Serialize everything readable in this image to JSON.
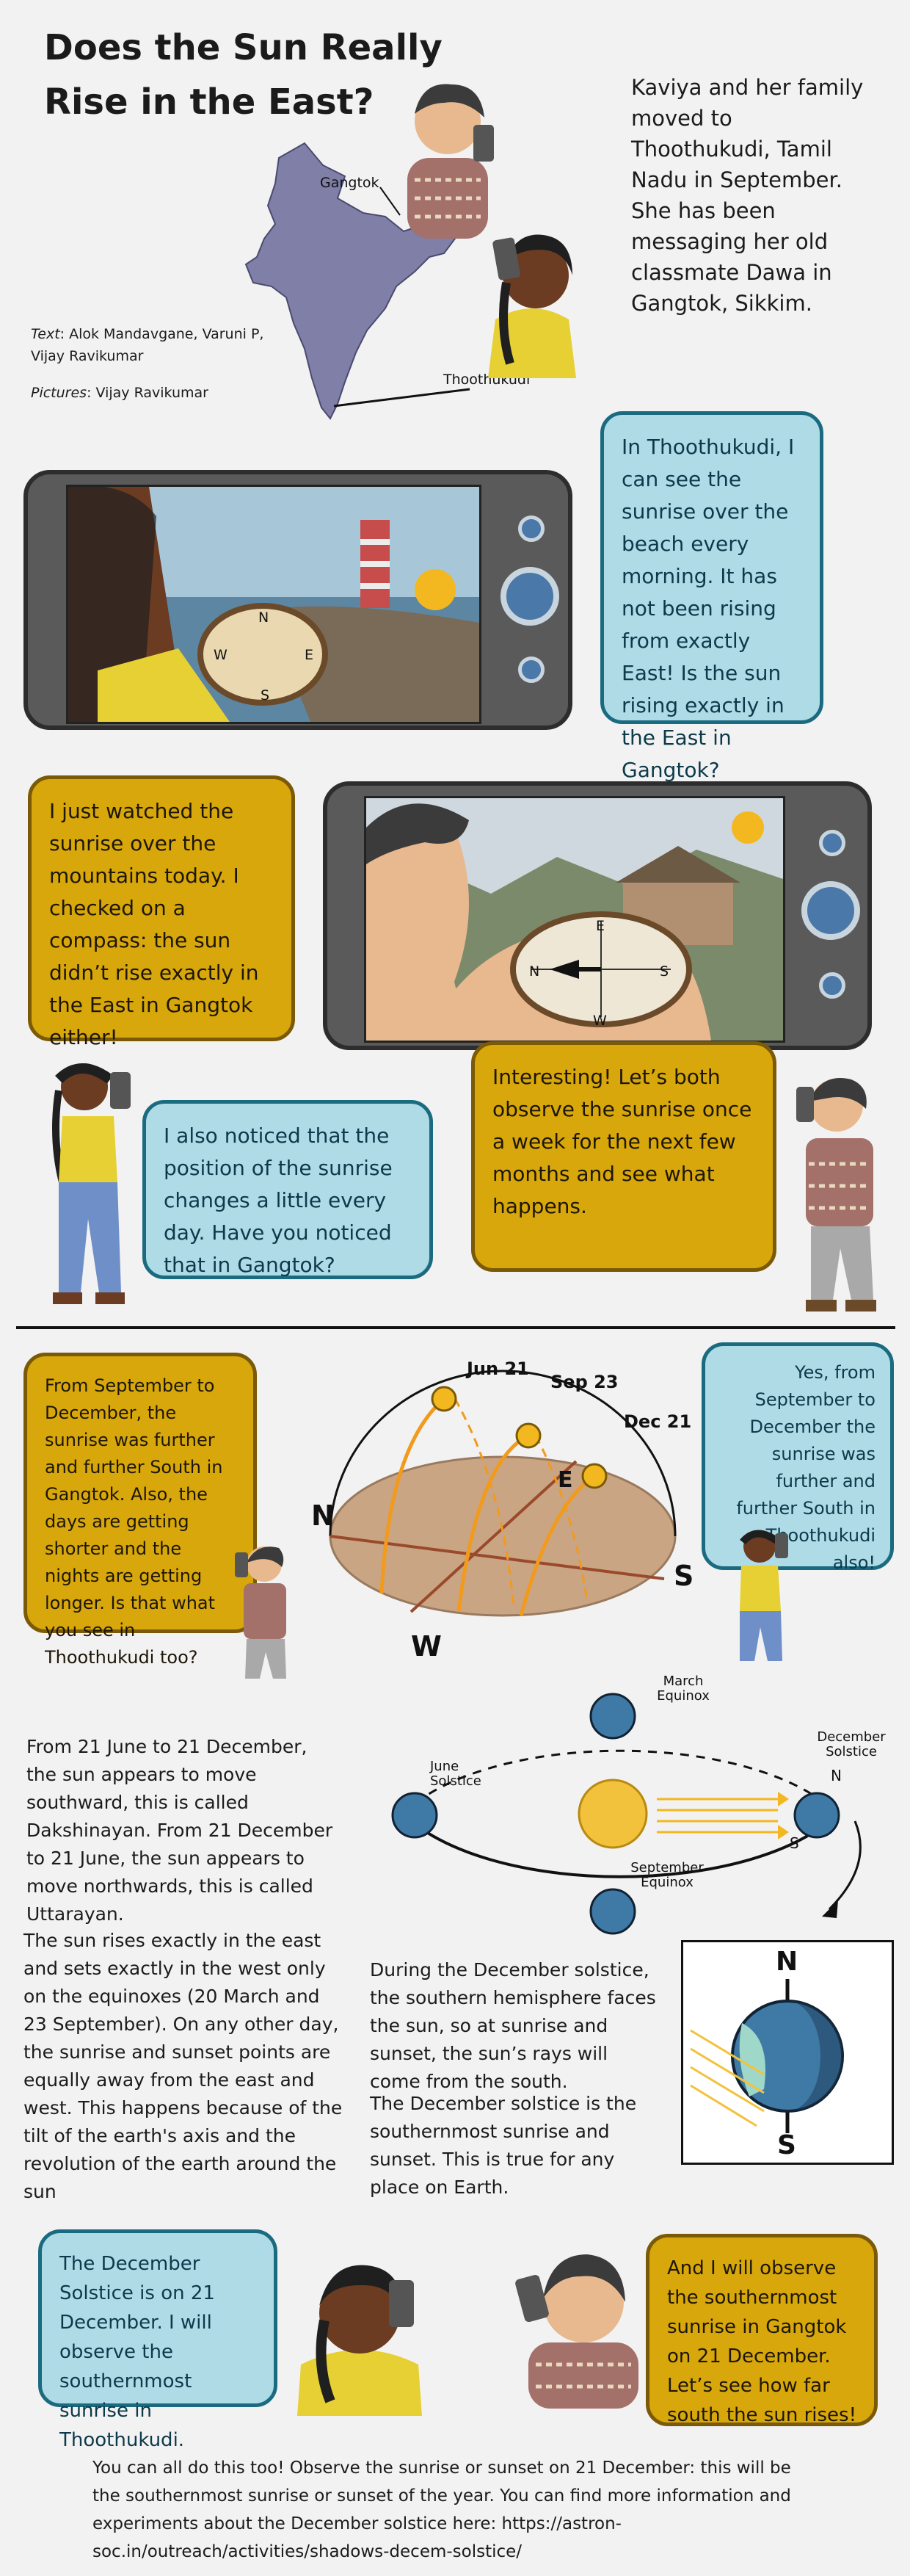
{
  "title": "Does the Sun Really Rise in the East?",
  "intro": "Kaviya and her family moved to Thoothukudi, Tamil Nadu in September. She has been messaging her old classmate Dawa in Gangtok, Sikkim.",
  "credits": {
    "text_label": "Text",
    "text_names": ": Alok Mandavgane, Varuni P, Vijay Ravikumar",
    "pictures_label": "Pictures",
    "pictures_names": ": Vijay Ravikumar"
  },
  "map": {
    "city_north": "Gangtok",
    "city_south": "Thoothukudi",
    "map_color": "#7f7fa8"
  },
  "compass": {
    "n": "N",
    "s": "S",
    "e": "E",
    "w": "W"
  },
  "bubbles": {
    "kaviya_1": "In Thoothukudi, I can see the sunrise over the beach every morning. It has not been rising from exactly East! Is the sun rising exactly in the East in Gangtok?",
    "dawa_1": "I just watched the sunrise over the mountains today. I checked on a compass: the sun didn’t rise exactly in the East in Gangtok either!",
    "kaviya_2": "I also noticed that the position of the sunrise changes a little every day. Have you noticed that in Gangtok?",
    "dawa_2": "Interesting! Let’s both observe the sunrise once a week for the next few months and see what happens.",
    "dawa_3": "From September to December, the sunrise was further and further South in Gangtok. Also, the days are getting shorter and the nights are getting longer. Is that what you see in Thoothukudi too?",
    "kaviya_3": "Yes, from September to December the sunrise was further and further South in Thoothukudi also!",
    "kaviya_4": "The December Solstice is on 21 December. I will observe the southernmost sunrise in Thoothukudi.",
    "dawa_4": "And I will observe the southernmost sunrise in Gangtok on 21 December. Let’s see how far south the sun rises!"
  },
  "sky_diagram": {
    "dates": [
      "Jun 21",
      "Sep 23",
      "Dec 21"
    ],
    "directions": {
      "n": "N",
      "s": "S",
      "e": "E",
      "w": "W"
    }
  },
  "orbit_diagram": {
    "march": "March Equinox",
    "june": "June Solstice",
    "september": "September Equinox",
    "december": "December Solstice",
    "n": "N",
    "s": "S"
  },
  "solstice_view": {
    "n": "N",
    "s": "S"
  },
  "paragraphs": {
    "dakshinayan": "From 21 June to 21 December, the sun appears to move southward, this is called Dakshinayan. From 21 December to 21 June, the sun appears to move northwards, this is called Uttarayan.",
    "equinox": "The sun rises exactly in the east and sets exactly in the west only on the equinoxes (20 March and 23 September). On any other day, the sunrise and sunset points are equally away from the east and west. This happens because of the tilt of the earth's axis and the revolution of the earth around the sun",
    "december_1": "During the December solstice, the southern hemisphere faces the sun, so at sunrise and sunset, the sun’s rays will come from the south.",
    "december_2": "The December solstice is the southernmost sunrise and sunset. This is true for any place on Earth."
  },
  "footer": "You can all do this too! Observe the sunrise or sunset on 21 December: this will be the southernmost sunrise or sunset of the year. You can find more information and experiments about the December solstice here: https://astron-soc.in/outreach/activities/shadows-decem-solstice/",
  "colors": {
    "blue_bubble": "#aedbe6",
    "blue_border": "#1b6b80",
    "gold_bubble": "#d7a70b",
    "gold_border": "#7a5a07",
    "sun": "#f3b81f",
    "path": "#f29a1c"
  }
}
